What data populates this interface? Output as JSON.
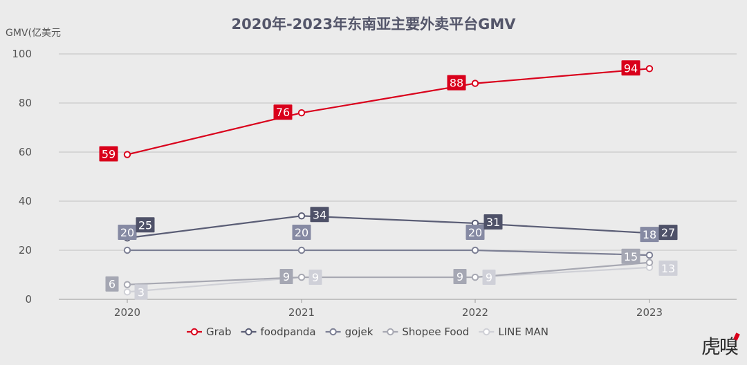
{
  "chart_data": {
    "type": "line",
    "title": "2020年-2023年东南亚主要外卖平台GMV",
    "ylabel": "GMV(亿美元",
    "xlabel": "",
    "categories": [
      "2020",
      "2021",
      "2022",
      "2023"
    ],
    "ylim": [
      0,
      100
    ],
    "yticks": [
      "0",
      "20",
      "40",
      "60",
      "80",
      "100"
    ],
    "grid": true,
    "legend_position": "bottom-center",
    "series": [
      {
        "name": "Grab",
        "values": [
          59,
          76,
          88,
          94
        ],
        "color": "#d9001b",
        "label_color": "#d9001b"
      },
      {
        "name": "foodpanda",
        "values": [
          25,
          34,
          31,
          27
        ],
        "color": "#5a5d75",
        "label_color": "#4e5168"
      },
      {
        "name": "gojek",
        "values": [
          20,
          20,
          20,
          18
        ],
        "color": "#7c7f94",
        "label_color": "#868aa3"
      },
      {
        "name": "Shopee Food",
        "values": [
          6,
          9,
          9,
          15
        ],
        "color": "#a7a8b2",
        "label_color": "#a5a7b3"
      },
      {
        "name": "LINE MAN",
        "values": [
          3,
          9,
          9,
          13
        ],
        "color": "#cfd0d6",
        "label_color": "#cfd0d8"
      }
    ]
  },
  "brand": {
    "logo_text": "虎嗅"
  }
}
